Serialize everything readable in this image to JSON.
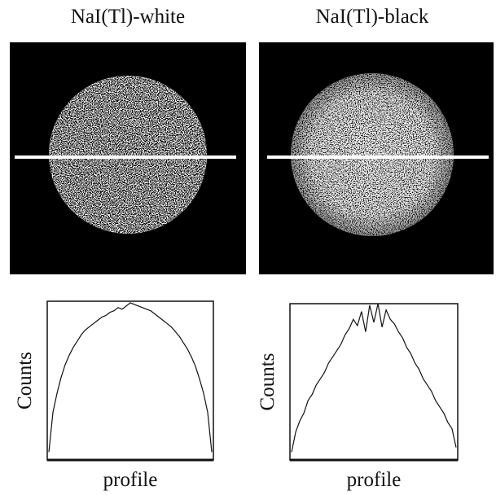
{
  "chart_data": [
    {
      "type": "line",
      "title": "NaI(Tl)-white",
      "y_label": "Counts",
      "x_label": "profile",
      "ylim": [
        0,
        100
      ],
      "values": [
        5,
        30,
        42,
        52,
        60,
        66,
        71,
        75,
        79,
        82,
        84,
        86,
        88,
        90,
        91,
        93,
        94,
        96,
        95,
        97,
        99,
        98,
        97,
        96,
        95,
        94,
        92,
        90,
        88,
        86,
        84,
        81,
        78,
        74,
        70,
        65,
        59,
        51,
        42,
        30,
        5
      ]
    },
    {
      "type": "line",
      "title": "NaI(Tl)-black",
      "y_label": "Counts",
      "x_label": "profile",
      "ylim": [
        0,
        100
      ],
      "values": [
        5,
        18,
        25,
        30,
        38,
        42,
        48,
        52,
        56,
        62,
        66,
        70,
        74,
        80,
        84,
        90,
        86,
        95,
        82,
        99,
        88,
        100,
        85,
        96,
        90,
        87,
        82,
        78,
        72,
        68,
        62,
        58,
        52,
        48,
        44,
        38,
        34,
        30,
        24,
        20,
        8
      ]
    }
  ]
}
